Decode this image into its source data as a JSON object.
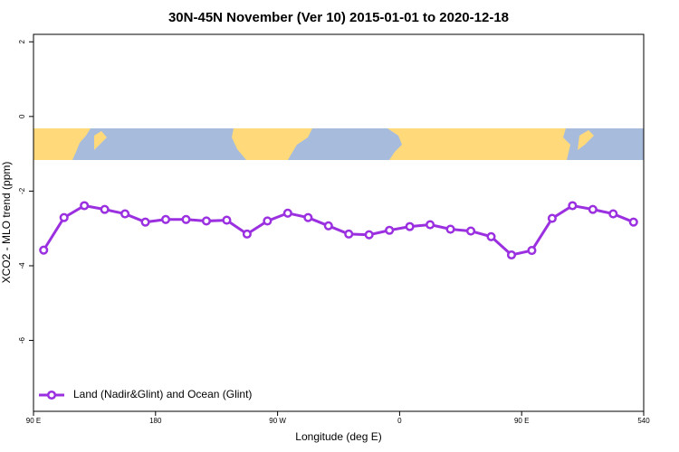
{
  "chart_data": {
    "type": "line",
    "title": "30N-45N November (Ver 10)   2015-01-01 to 2020-12-18",
    "xlabel": "Longitude (deg E)",
    "ylabel": "XCO2 - MLO trend (ppm)",
    "x": [
      97.5,
      112.5,
      127.5,
      142.5,
      157.5,
      172.5,
      187.5,
      202.5,
      217.5,
      232.5,
      247.5,
      262.5,
      277.5,
      292.5,
      307.5,
      322.5,
      337.5,
      352.5,
      367.5,
      382.5,
      397.5,
      412.5,
      427.5,
      442.5,
      457.5,
      472.5,
      487.5,
      502.5,
      517.5,
      532.5
    ],
    "series": [
      {
        "name": "Land (Nadir&Glint) and Ocean (Glint)",
        "color": "#9b30e0",
        "values": [
          -3.58,
          -2.71,
          -2.39,
          -2.49,
          -2.61,
          -2.83,
          -2.76,
          -2.76,
          -2.8,
          -2.78,
          -3.15,
          -2.8,
          -2.59,
          -2.71,
          -2.93,
          -3.15,
          -3.17,
          -3.05,
          -2.95,
          -2.9,
          -3.02,
          -3.07,
          -3.22,
          -3.71,
          -3.59,
          -2.73,
          -2.39,
          -2.49,
          -2.61,
          -2.83
        ]
      }
    ],
    "xlim": [
      90,
      540
    ],
    "xticks": [
      {
        "value": 90,
        "label": "90 E"
      },
      180,
      {
        "value": 270,
        "label": "90 W"
      },
      {
        "value": 360,
        "label": "0"
      },
      {
        "value": 450,
        "label": "90 E"
      },
      540
    ],
    "ylim": [
      -7.9,
      2.2
    ],
    "yticks": [
      -6,
      -4,
      -2,
      0,
      2
    ],
    "legend": "lower left"
  }
}
